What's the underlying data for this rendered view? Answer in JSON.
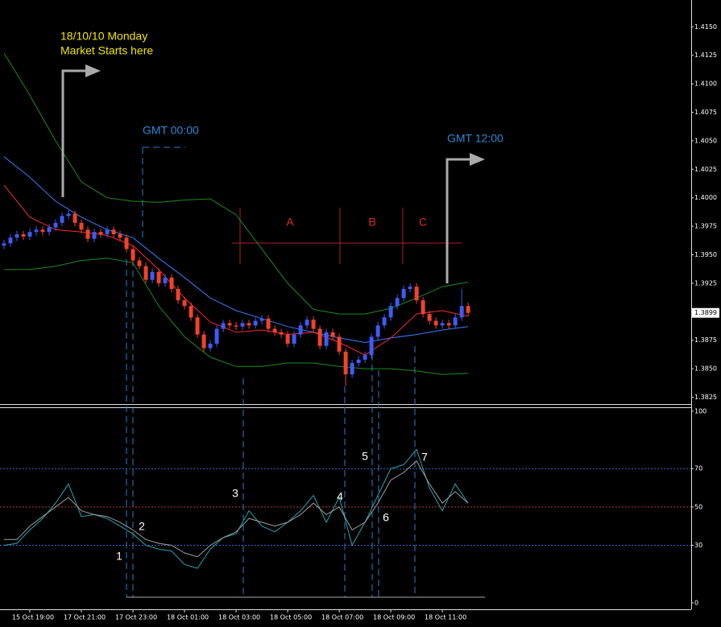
{
  "annotations": {
    "date": "18/10/10  Monday",
    "market_start": "Market Starts here",
    "gmt_start": "GMT 00:00",
    "gmt_noon": "GMT 12:00",
    "segments": [
      "A",
      "B",
      "C"
    ],
    "points": [
      "1",
      "2",
      "3",
      "4",
      "5",
      "6",
      "7"
    ]
  },
  "chart_data": [
    {
      "type": "candlestick",
      "x": [
        0,
        1,
        2,
        3,
        4,
        5,
        6,
        7,
        8,
        9,
        10,
        11,
        12,
        13,
        14,
        15,
        16,
        17,
        18,
        19,
        20,
        21,
        22,
        23,
        24,
        25,
        26,
        27,
        28,
        29,
        30,
        31,
        32,
        33,
        34,
        35,
        36,
        37,
        38,
        39,
        40,
        41,
        42,
        43,
        44,
        45,
        46,
        47,
        48,
        49,
        50,
        51,
        52,
        53,
        54,
        55,
        56,
        57,
        58,
        59,
        60,
        61,
        62,
        63,
        64,
        65,
        66,
        67,
        68,
        69,
        70,
        71,
        72
      ],
      "open": [
        1.3958,
        1.396,
        1.3965,
        1.3968,
        1.3966,
        1.397,
        1.3972,
        1.397,
        1.3974,
        1.3978,
        1.3984,
        1.3986,
        1.3978,
        1.3972,
        1.3964,
        1.397,
        1.3968,
        1.3972,
        1.3968,
        1.3965,
        1.3955,
        1.3945,
        1.394,
        1.3928,
        1.3935,
        1.3925,
        1.393,
        1.392,
        1.391,
        1.3905,
        1.3895,
        1.388,
        1.3868,
        1.3872,
        1.3885,
        1.389,
        1.3888,
        1.3887,
        1.389,
        1.3888,
        1.3892,
        1.3894,
        1.3885,
        1.3882,
        1.388,
        1.3872,
        1.388,
        1.3888,
        1.3893,
        1.3885,
        1.387,
        1.3882,
        1.3878,
        1.3865,
        1.3845,
        1.3855,
        1.3858,
        1.3862,
        1.3878,
        1.3888,
        1.3895,
        1.3905,
        1.3912,
        1.392,
        1.3922,
        1.391,
        1.3898,
        1.3892,
        1.3888,
        1.389,
        1.3888,
        1.3895,
        1.3905
      ],
      "high": [
        1.3963,
        1.3968,
        1.3971,
        1.3971,
        1.3973,
        1.3975,
        1.3975,
        1.3977,
        1.3981,
        1.3987,
        1.3989,
        1.3989,
        1.3981,
        1.3975,
        1.3973,
        1.3973,
        1.3975,
        1.3975,
        1.3971,
        1.3968,
        1.3958,
        1.3948,
        1.3943,
        1.3938,
        1.3938,
        1.3933,
        1.3933,
        1.3923,
        1.3913,
        1.3908,
        1.3898,
        1.3883,
        1.3875,
        1.3888,
        1.3893,
        1.3893,
        1.3891,
        1.3893,
        1.3893,
        1.3895,
        1.3897,
        1.3897,
        1.3888,
        1.3885,
        1.3883,
        1.3883,
        1.3891,
        1.3896,
        1.3896,
        1.3888,
        1.3885,
        1.3885,
        1.3881,
        1.3868,
        1.3858,
        1.3861,
        1.3865,
        1.3881,
        1.3891,
        1.3898,
        1.3908,
        1.3915,
        1.3923,
        1.3925,
        1.3925,
        1.3913,
        1.3901,
        1.3895,
        1.3893,
        1.3893,
        1.3898,
        1.392,
        1.3908
      ],
      "low": [
        1.3955,
        1.3957,
        1.3962,
        1.3963,
        1.3963,
        1.3967,
        1.3967,
        1.3967,
        1.3971,
        1.3975,
        1.3981,
        1.3975,
        1.3969,
        1.3961,
        1.3961,
        1.3965,
        1.3965,
        1.3965,
        1.3962,
        1.3952,
        1.3942,
        1.3937,
        1.3925,
        1.3925,
        1.3922,
        1.3922,
        1.3917,
        1.3907,
        1.3902,
        1.3892,
        1.3877,
        1.3865,
        1.3865,
        1.3869,
        1.3882,
        1.3885,
        1.3884,
        1.3884,
        1.3885,
        1.3885,
        1.3889,
        1.3882,
        1.3879,
        1.3877,
        1.3869,
        1.3869,
        1.3877,
        1.3885,
        1.3882,
        1.3867,
        1.3867,
        1.3875,
        1.3862,
        1.3835,
        1.3842,
        1.3852,
        1.3855,
        1.3859,
        1.3875,
        1.3885,
        1.3892,
        1.3902,
        1.3909,
        1.3917,
        1.3907,
        1.3895,
        1.3889,
        1.3885,
        1.3885,
        1.3885,
        1.3885,
        1.3892,
        1.3896
      ],
      "close": [
        1.396,
        1.3965,
        1.3968,
        1.3966,
        1.397,
        1.3972,
        1.397,
        1.3974,
        1.3978,
        1.3984,
        1.3986,
        1.3978,
        1.3972,
        1.3964,
        1.397,
        1.3968,
        1.3972,
        1.3968,
        1.3965,
        1.3955,
        1.3945,
        1.394,
        1.3928,
        1.3935,
        1.3925,
        1.393,
        1.392,
        1.391,
        1.3905,
        1.3895,
        1.388,
        1.3868,
        1.3872,
        1.3885,
        1.389,
        1.3888,
        1.3887,
        1.389,
        1.3888,
        1.3892,
        1.3894,
        1.3885,
        1.3882,
        1.388,
        1.3872,
        1.388,
        1.3888,
        1.3893,
        1.3885,
        1.387,
        1.3882,
        1.3878,
        1.3865,
        1.3845,
        1.3855,
        1.3858,
        1.3862,
        1.3878,
        1.3888,
        1.3895,
        1.3905,
        1.3912,
        1.392,
        1.3922,
        1.391,
        1.3898,
        1.3892,
        1.3888,
        1.389,
        1.3888,
        1.3895,
        1.3905,
        1.3899
      ],
      "up_color": "#3d5cf5",
      "down_color": "#f0432a",
      "overlays": [
        {
          "color": "#1c8c1c",
          "x": [
            0,
            4,
            8,
            12,
            16,
            20,
            24,
            28,
            32,
            36,
            40,
            44,
            48,
            52,
            56,
            60,
            64,
            68,
            72
          ],
          "values": [
            1.4127,
            1.409,
            1.405,
            1.4014,
            1.4,
            1.3997,
            1.3996,
            1.3998,
            1.3999,
            1.3985,
            1.3955,
            1.3925,
            1.3902,
            1.3898,
            1.3898,
            1.3903,
            1.3912,
            1.3922,
            1.3926
          ]
        },
        {
          "color": "#1c8c1c",
          "x": [
            0,
            4,
            8,
            12,
            16,
            20,
            24,
            28,
            32,
            36,
            40,
            44,
            48,
            52,
            56,
            60,
            64,
            68,
            72
          ],
          "values": [
            1.3937,
            1.3937,
            1.394,
            1.3945,
            1.3947,
            1.3943,
            1.3905,
            1.3878,
            1.386,
            1.3852,
            1.3852,
            1.3855,
            1.3855,
            1.3852,
            1.385,
            1.385,
            1.3848,
            1.3845,
            1.3846
          ]
        },
        {
          "color": "#3a7bff",
          "x": [
            0,
            4,
            8,
            12,
            16,
            20,
            24,
            28,
            32,
            36,
            40,
            44,
            48,
            52,
            56,
            60,
            64,
            68,
            72
          ],
          "values": [
            1.4036,
            1.4018,
            1.3997,
            1.3983,
            1.3972,
            1.3965,
            1.3947,
            1.393,
            1.3912,
            1.3901,
            1.3894,
            1.3887,
            1.3882,
            1.3877,
            1.3873,
            1.3877,
            1.388,
            1.3884,
            1.3887
          ]
        },
        {
          "color": "#ff2a2a",
          "x": [
            0,
            4,
            8,
            12,
            16,
            20,
            24,
            28,
            32,
            36,
            40,
            44,
            48,
            52,
            56,
            60,
            64,
            68,
            72
          ],
          "values": [
            1.4011,
            1.3983,
            1.3972,
            1.397,
            1.3967,
            1.3958,
            1.3937,
            1.3912,
            1.3891,
            1.3882,
            1.3884,
            1.388,
            1.3882,
            1.3873,
            1.3862,
            1.3877,
            1.3898,
            1.3901,
            1.3896
          ]
        }
      ],
      "xlim": [
        -0.625,
        106.6
      ],
      "ylim": [
        1.3819,
        1.417
      ],
      "yticks": [
        {
          "value": 1.415,
          "label": "1.4150"
        },
        {
          "value": 1.4125,
          "label": "1.4125"
        },
        {
          "value": 1.41,
          "label": "1.4100"
        },
        {
          "value": 1.4075,
          "label": "1.4075"
        },
        {
          "value": 1.405,
          "label": "1.4050"
        },
        {
          "value": 1.4025,
          "label": "1.4025"
        },
        {
          "value": 1.4,
          "label": "1.4000"
        },
        {
          "value": 1.3975,
          "label": "1.3975"
        },
        {
          "value": 1.395,
          "label": "1.3950"
        },
        {
          "value": 1.3925,
          "label": "1.3925"
        },
        {
          "value": 1.3875,
          "label": "1.3875"
        },
        {
          "value": 1.385,
          "label": "1.3850"
        },
        {
          "value": 1.3825,
          "label": "1.3825"
        }
      ],
      "last_price": {
        "value": 1.3899,
        "label": "1.3899"
      }
    },
    {
      "type": "line",
      "x": [
        0,
        2,
        4,
        6,
        8,
        10,
        12,
        14,
        16,
        18,
        20,
        22,
        24,
        26,
        28,
        30,
        32,
        34,
        36,
        38,
        40,
        42,
        44,
        46,
        48,
        50,
        52,
        54,
        56,
        58,
        60,
        62,
        64,
        66,
        68,
        70,
        72
      ],
      "series": [
        {
          "color": "#26a5b0",
          "values": [
            30,
            31,
            38,
            44,
            52,
            62,
            45,
            46,
            44,
            40,
            36,
            30,
            28,
            27,
            20,
            18,
            28,
            34,
            36,
            48,
            40,
            37,
            42,
            48,
            56,
            42,
            55,
            30,
            42,
            56,
            70,
            72,
            80,
            60,
            48,
            62,
            52
          ]
        },
        {
          "color": "#a0a0a0",
          "values": [
            33,
            33,
            40,
            45,
            50,
            55,
            48,
            46,
            45,
            42,
            38,
            33,
            31,
            30,
            26,
            24,
            30,
            34,
            37,
            44,
            42,
            40,
            42,
            46,
            52,
            46,
            50,
            38,
            42,
            52,
            64,
            68,
            74,
            62,
            52,
            58,
            52
          ]
        }
      ],
      "levels": [
        {
          "value": 70,
          "color": "#3a6ad6"
        },
        {
          "value": 50,
          "color": "#c0392b"
        },
        {
          "value": 30,
          "color": "#3a6ad6"
        }
      ],
      "xlim": [
        -0.625,
        106.6
      ],
      "ylim": [
        -3.4,
        102
      ],
      "yticks": [
        100,
        70,
        50,
        30,
        0
      ],
      "xticks": [
        {
          "value": 4,
          "label": "15 Oct 19:00"
        },
        {
          "value": 12,
          "label": "17 Oct 21:00"
        },
        {
          "value": 20,
          "label": "17 Oct 23:00"
        },
        {
          "value": 28,
          "label": "18 Oct 01:00"
        },
        {
          "value": 36,
          "label": "18 Oct 03:00"
        },
        {
          "value": 44,
          "label": "18 Oct 05:00"
        },
        {
          "value": 52,
          "label": "18 Oct 07:00"
        },
        {
          "value": 60,
          "label": "18 Oct 09:00"
        },
        {
          "value": 68,
          "label": "18 Oct 11:00"
        }
      ]
    }
  ]
}
